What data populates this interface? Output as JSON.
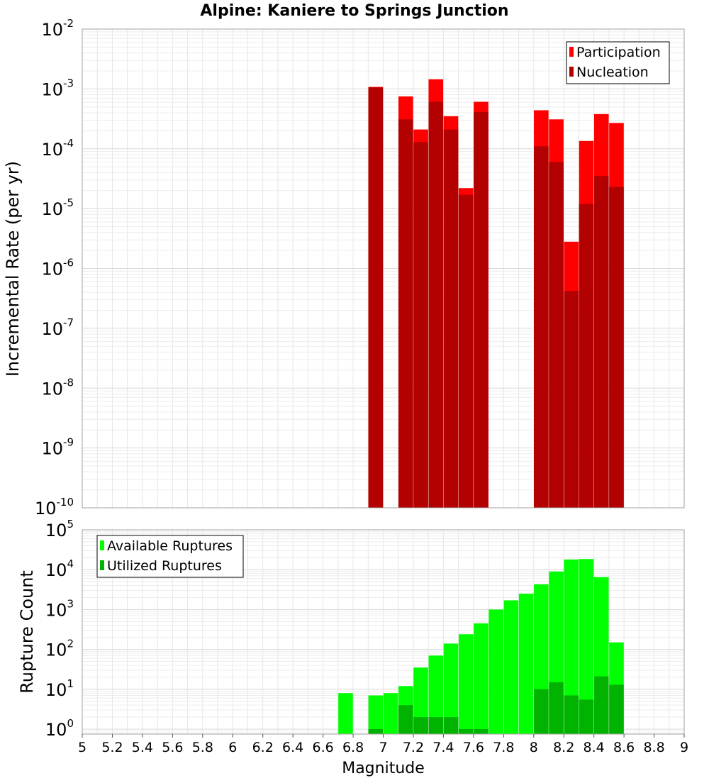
{
  "chart_data": [
    {
      "type": "bar",
      "title": "Alpine: Kaniere to Springs Junction",
      "xlabel": "",
      "ylabel": "Incremental Rate (per yr)",
      "yscale": "log",
      "xlim": [
        5,
        9
      ],
      "ylim": [
        1e-10,
        0.01
      ],
      "y_tick_exponents": [
        -10,
        -9,
        -8,
        -7,
        -6,
        -5,
        -4,
        -3,
        -2
      ],
      "legend_position": "top-right",
      "grid": true,
      "x": [
        6.95,
        7.15,
        7.25,
        7.35,
        7.45,
        7.55,
        7.65,
        8.05,
        8.15,
        8.25,
        8.35,
        8.45,
        8.55
      ],
      "series": [
        {
          "name": "Participation",
          "color": "#ff0000",
          "values": [
            0.00108,
            0.00075,
            0.00021,
            0.00145,
            0.00035,
            2.2e-05,
            0.00061,
            0.00044,
            0.00031,
            2.8e-06,
            0.000135,
            0.00038,
            0.00027
          ]
        },
        {
          "name": "Nucleation",
          "color": "#b30000",
          "values": [
            0.00106,
            0.00031,
            0.00013,
            0.00061,
            0.00021,
            1.7e-05,
            0.00041,
            0.00011,
            6e-05,
            4.2e-07,
            1.2e-05,
            3.5e-05,
            2.3e-05
          ]
        }
      ]
    },
    {
      "type": "bar",
      "title": "",
      "xlabel": "Magnitude",
      "ylabel": "Rupture Count",
      "yscale": "log",
      "xlim": [
        5,
        9
      ],
      "ylim": [
        0.75,
        100000
      ],
      "y_tick_exponents": [
        0,
        1,
        2,
        3,
        4,
        5
      ],
      "x_ticks": [
        "5",
        "5.2",
        "5.4",
        "5.6",
        "5.8",
        "6",
        "6.2",
        "6.4",
        "6.6",
        "6.8",
        "7",
        "7.2",
        "7.4",
        "7.6",
        "7.8",
        "8",
        "8.2",
        "8.4",
        "8.6",
        "8.8",
        "9"
      ],
      "legend_position": "top-left",
      "grid": true,
      "x": [
        6.75,
        6.95,
        7.05,
        7.15,
        7.25,
        7.35,
        7.45,
        7.55,
        7.65,
        7.75,
        7.85,
        7.95,
        8.05,
        8.15,
        8.25,
        8.35,
        8.45,
        8.55
      ],
      "series": [
        {
          "name": "Available Ruptures",
          "color": "#00ff00",
          "values": [
            8,
            7,
            8,
            12,
            35,
            70,
            140,
            240,
            450,
            1000,
            1700,
            2500,
            4300,
            9000,
            18000,
            18500,
            6500,
            150
          ]
        },
        {
          "name": "Utilized Ruptures",
          "color": "#00b300",
          "values": [
            0,
            1,
            0,
            4,
            2,
            2,
            2,
            1,
            1,
            0,
            0,
            0,
            10,
            15,
            7,
            5.5,
            21,
            13
          ]
        }
      ]
    }
  ]
}
